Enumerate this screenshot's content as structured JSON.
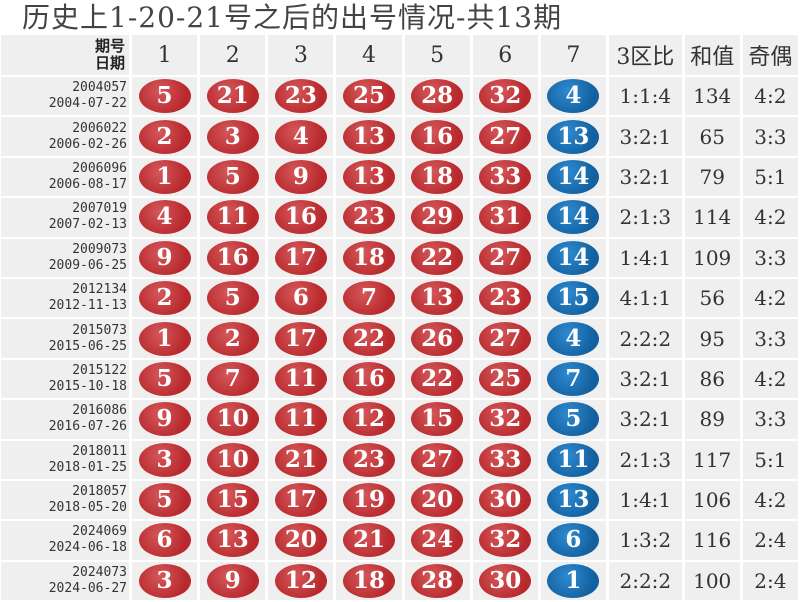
{
  "title": "历史上1-20-21号之后的出号情况-共13期",
  "header": {
    "issue_label": "期号",
    "date_label": "日期",
    "balls": [
      "1",
      "2",
      "3",
      "4",
      "5",
      "6",
      "7"
    ],
    "zone": "3区比",
    "sum": "和值",
    "odd_even": "奇偶"
  },
  "colors": {
    "red_ball": "#c0393b",
    "blue_ball": "#1a6fad"
  },
  "rows": [
    {
      "issue": "2004057",
      "date": "2004-07-22",
      "reds": [
        "5",
        "21",
        "23",
        "25",
        "28",
        "32"
      ],
      "blue": "4",
      "zone": "1:1:4",
      "sum": "134",
      "oe": "4:2"
    },
    {
      "issue": "2006022",
      "date": "2006-02-26",
      "reds": [
        "2",
        "3",
        "4",
        "13",
        "16",
        "27"
      ],
      "blue": "13",
      "zone": "3:2:1",
      "sum": "65",
      "oe": "3:3"
    },
    {
      "issue": "2006096",
      "date": "2006-08-17",
      "reds": [
        "1",
        "5",
        "9",
        "13",
        "18",
        "33"
      ],
      "blue": "14",
      "zone": "3:2:1",
      "sum": "79",
      "oe": "5:1"
    },
    {
      "issue": "2007019",
      "date": "2007-02-13",
      "reds": [
        "4",
        "11",
        "16",
        "23",
        "29",
        "31"
      ],
      "blue": "14",
      "zone": "2:1:3",
      "sum": "114",
      "oe": "4:2"
    },
    {
      "issue": "2009073",
      "date": "2009-06-25",
      "reds": [
        "9",
        "16",
        "17",
        "18",
        "22",
        "27"
      ],
      "blue": "14",
      "zone": "1:4:1",
      "sum": "109",
      "oe": "3:3"
    },
    {
      "issue": "2012134",
      "date": "2012-11-13",
      "reds": [
        "2",
        "5",
        "6",
        "7",
        "13",
        "23"
      ],
      "blue": "15",
      "zone": "4:1:1",
      "sum": "56",
      "oe": "4:2"
    },
    {
      "issue": "2015073",
      "date": "2015-06-25",
      "reds": [
        "1",
        "2",
        "17",
        "22",
        "26",
        "27"
      ],
      "blue": "4",
      "zone": "2:2:2",
      "sum": "95",
      "oe": "3:3"
    },
    {
      "issue": "2015122",
      "date": "2015-10-18",
      "reds": [
        "5",
        "7",
        "11",
        "16",
        "22",
        "25"
      ],
      "blue": "7",
      "zone": "3:2:1",
      "sum": "86",
      "oe": "4:2"
    },
    {
      "issue": "2016086",
      "date": "2016-07-26",
      "reds": [
        "9",
        "10",
        "11",
        "12",
        "15",
        "32"
      ],
      "blue": "5",
      "zone": "3:2:1",
      "sum": "89",
      "oe": "3:3"
    },
    {
      "issue": "2018011",
      "date": "2018-01-25",
      "reds": [
        "3",
        "10",
        "21",
        "23",
        "27",
        "33"
      ],
      "blue": "11",
      "zone": "2:1:3",
      "sum": "117",
      "oe": "5:1"
    },
    {
      "issue": "2018057",
      "date": "2018-05-20",
      "reds": [
        "5",
        "15",
        "17",
        "19",
        "20",
        "30"
      ],
      "blue": "13",
      "zone": "1:4:1",
      "sum": "106",
      "oe": "4:2"
    },
    {
      "issue": "2024069",
      "date": "2024-06-18",
      "reds": [
        "6",
        "13",
        "20",
        "21",
        "24",
        "32"
      ],
      "blue": "6",
      "zone": "1:3:2",
      "sum": "116",
      "oe": "2:4"
    },
    {
      "issue": "2024073",
      "date": "2024-06-27",
      "reds": [
        "3",
        "9",
        "12",
        "18",
        "28",
        "30"
      ],
      "blue": "1",
      "zone": "2:2:2",
      "sum": "100",
      "oe": "2:4"
    }
  ]
}
